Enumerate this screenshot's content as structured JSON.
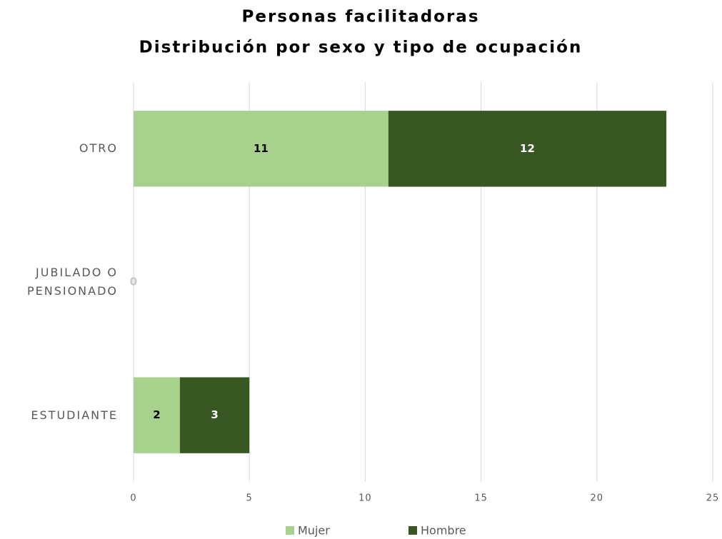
{
  "chart_data": {
    "type": "stacked_barh",
    "title": "Personas facilitadoras",
    "subtitle": "Distribución por sexo y tipo de ocupación",
    "categories": [
      "OTRO",
      "JUBILADO O PENSIONADO",
      "ESTUDIANTE"
    ],
    "series": [
      {
        "name": "Mujer",
        "color": "#a9d18e",
        "values": [
          11,
          0,
          2
        ]
      },
      {
        "name": "Hombre",
        "color": "#385723",
        "values": [
          12,
          0,
          3
        ]
      }
    ],
    "xlim": [
      0,
      25
    ],
    "xticks": [
      0,
      5,
      10,
      15,
      20,
      25
    ],
    "grid": true,
    "legend": "bottom"
  }
}
